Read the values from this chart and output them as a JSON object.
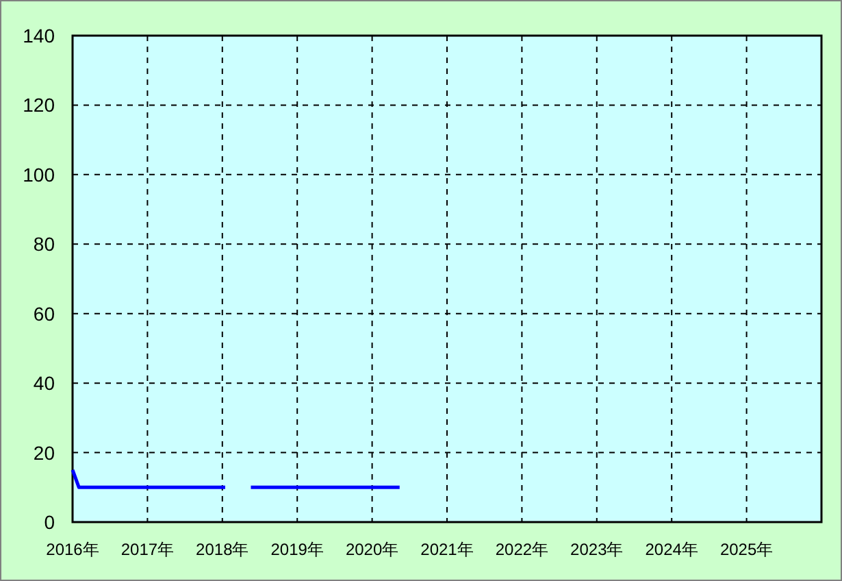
{
  "chart_data": {
    "type": "line",
    "series": [
      {
        "color": "#0000ff",
        "x": [
          "2016-01",
          "2016-02",
          "2018-01-15"
        ],
        "values": [
          15,
          10,
          10
        ]
      },
      {
        "color": "#0000ff",
        "x": [
          "2018-05-20",
          "2020-05-15"
        ],
        "values": [
          10,
          10
        ]
      }
    ],
    "xlim": [
      "2016",
      "2026"
    ],
    "xticks": [
      {
        "value": "2016",
        "label": "2016年"
      },
      {
        "value": "2017",
        "label": "2017年"
      },
      {
        "value": "2018",
        "label": "2018年"
      },
      {
        "value": "2019",
        "label": "2019年"
      },
      {
        "value": "2020",
        "label": "2020年"
      },
      {
        "value": "2021",
        "label": "2021年"
      },
      {
        "value": "2022",
        "label": "2022年"
      },
      {
        "value": "2023",
        "label": "2023年"
      },
      {
        "value": "2024",
        "label": "2024年"
      },
      {
        "value": "2025",
        "label": "2025年"
      }
    ],
    "ylim": [
      0,
      140
    ],
    "yticks": [
      0,
      20,
      40,
      60,
      80,
      100,
      120,
      140
    ],
    "grid": true,
    "line_style": "solid"
  }
}
